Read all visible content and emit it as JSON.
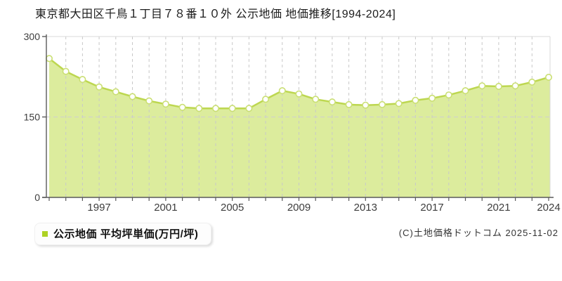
{
  "title": "東京都大田区千鳥１丁目７８番１０外 公示地価 地価推移[1994-2024]",
  "legend": {
    "label": "公示地価 平均坪単価(万円/坪)"
  },
  "footer": {
    "copyright": "(C)土地価格ドットコム 2025-11-02"
  },
  "colors": {
    "area_fill": "#dcec9d",
    "line": "#bdd750",
    "marker_fill": "#ffffff",
    "marker_stroke": "#cadf73",
    "legend_swatch": "#aed224",
    "grid": "#c8c8c8",
    "grid_h": "#cfcfcf",
    "frame": "#d9d9d9",
    "axis": "#5a5a5a",
    "tick_label": "#3d3d3d"
  },
  "chart_data": {
    "type": "area",
    "title": "東京都大田区千鳥１丁目７８番１０外 公示地価 地価推移[1994-2024]",
    "series_name": "公示地価 平均坪単価(万円/坪)",
    "unit": "万円/坪",
    "x": [
      1994,
      1995,
      1996,
      1997,
      1998,
      1999,
      2000,
      2001,
      2002,
      2003,
      2004,
      2005,
      2006,
      2007,
      2008,
      2009,
      2010,
      2011,
      2012,
      2013,
      2014,
      2015,
      2016,
      2017,
      2018,
      2019,
      2020,
      2021,
      2022,
      2023,
      2024
    ],
    "values": [
      259,
      235,
      220,
      206,
      197,
      188,
      180,
      174,
      168,
      166,
      166,
      166,
      166,
      183,
      199,
      193,
      183,
      178,
      173,
      172,
      173,
      175,
      181,
      185,
      191,
      199,
      208,
      207,
      208,
      215,
      224
    ],
    "xticks": [
      1997,
      2001,
      2005,
      2009,
      2013,
      2017,
      2021,
      2024
    ],
    "yticks": [
      0,
      150,
      300
    ],
    "ylim": [
      0,
      300
    ],
    "grid": true,
    "legend_position": "bottom-left"
  }
}
